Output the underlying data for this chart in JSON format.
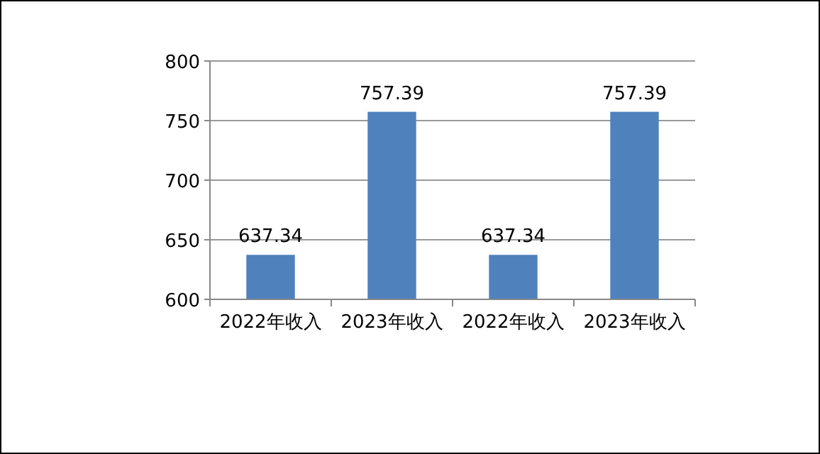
{
  "chart_data": {
    "type": "bar",
    "categories": [
      "2022年收入",
      "2023年收入",
      "2022年收入",
      "2023年收入"
    ],
    "values": [
      637.34,
      757.39,
      637.34,
      757.39
    ],
    "color": "#4f81bd",
    "ylim": [
      600,
      800
    ],
    "yticks": [
      600,
      650,
      700,
      750,
      800
    ],
    "grid": "y",
    "data_labels": true
  }
}
